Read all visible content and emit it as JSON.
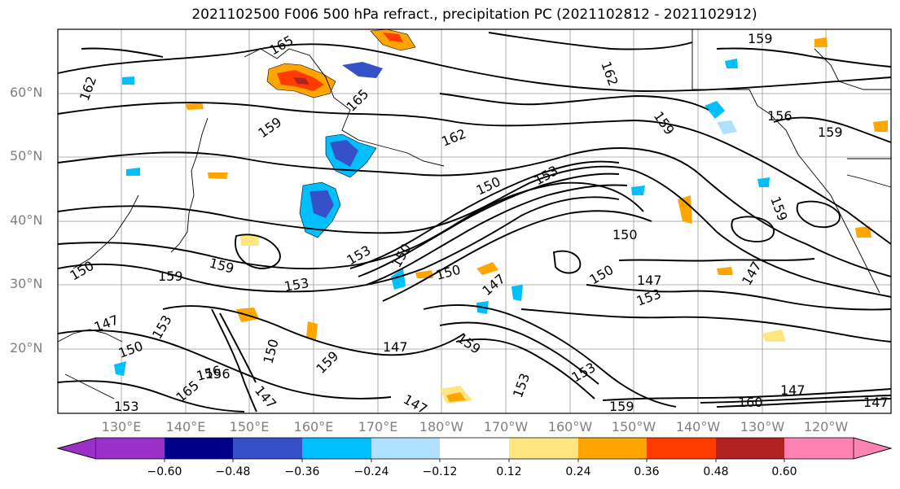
{
  "title": "2021102500 F006 500 hPa refract., precipitation PC (2021102812 - 2021102912)",
  "lat_labels": [
    "60°N",
    "50°N",
    "40°N",
    "30°N",
    "20°N"
  ],
  "lon_labels": [
    "130°E",
    "140°E",
    "150°E",
    "160°E",
    "170°E",
    "180°W",
    "170°W",
    "160°W",
    "150°W",
    "140°W",
    "130°W",
    "120°W"
  ],
  "colorbar": {
    "colors": [
      "#9b30c9",
      "#00008b",
      "#3550c8",
      "#00bfff",
      "#b0e0ff",
      "#ffffff",
      "#ffe680",
      "#ffa500",
      "#ff3c00",
      "#b22222",
      "#ff82b4"
    ],
    "ticks": [
      "−0.60",
      "−0.48",
      "−0.36",
      "−0.24",
      "−0.12",
      "0.12",
      "0.24",
      "0.36",
      "0.48",
      "0.60"
    ]
  },
  "contour_labels": [
    "165",
    "162",
    "165",
    "159",
    "162",
    "159",
    "162",
    "159",
    "156",
    "159",
    "150",
    "153",
    "159",
    "150",
    "159",
    "150",
    "153",
    "150",
    "150",
    "147",
    "153",
    "147",
    "147",
    "159",
    "153",
    "147",
    "150",
    "156",
    "165",
    "159",
    "147",
    "150",
    "153",
    "147",
    "153",
    "147",
    "147",
    "153",
    "159",
    "153",
    "159",
    "156",
    "160",
    "150",
    "147"
  ]
}
